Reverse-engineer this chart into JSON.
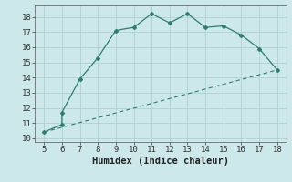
{
  "title": "",
  "xlabel": "Humidex (Indice chaleur)",
  "ylabel": "",
  "curve_x": [
    5,
    6,
    6,
    7,
    8,
    9,
    10,
    11,
    12,
    13,
    14,
    15,
    16,
    17,
    18
  ],
  "curve_y": [
    10.4,
    10.9,
    11.7,
    13.9,
    15.3,
    17.1,
    17.3,
    18.2,
    17.6,
    18.2,
    17.3,
    17.4,
    16.8,
    15.9,
    14.5
  ],
  "line_x": [
    5,
    18
  ],
  "line_y": [
    10.4,
    14.5
  ],
  "xlim": [
    4.5,
    18.5
  ],
  "ylim": [
    9.75,
    18.75
  ],
  "xticks": [
    5,
    6,
    7,
    8,
    9,
    10,
    11,
    12,
    13,
    14,
    15,
    16,
    17,
    18
  ],
  "yticks": [
    10,
    11,
    12,
    13,
    14,
    15,
    16,
    17,
    18
  ],
  "curve_color": "#2e7d6e",
  "line_color": "#2e7d6e",
  "bg_color": "#cce8ea",
  "grid_color": "#b0d0d4",
  "tick_label_fontsize": 6.5,
  "xlabel_fontsize": 7.5
}
